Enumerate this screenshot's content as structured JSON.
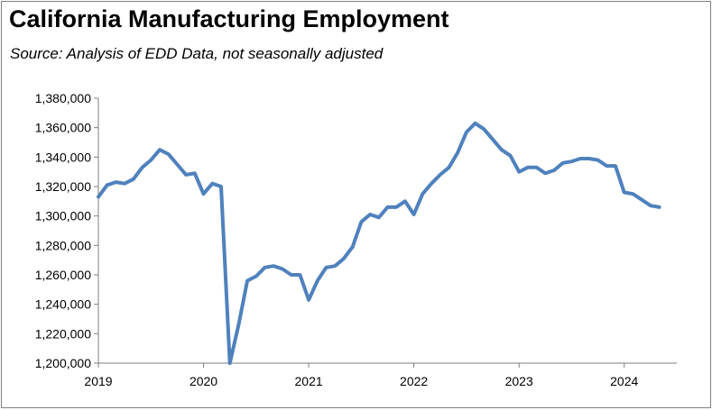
{
  "chart_data": {
    "type": "line",
    "title": "California Manufacturing Employment",
    "subtitle": "Source:  Analysis of EDD Data, not seasonally adjusted",
    "xlabel": "",
    "ylabel": "",
    "ylim": [
      1200000,
      1380000
    ],
    "yticks": [
      1200000,
      1220000,
      1240000,
      1260000,
      1280000,
      1300000,
      1320000,
      1340000,
      1360000,
      1380000
    ],
    "ytick_labels": [
      "1,200,000",
      "1,220,000",
      "1,240,000",
      "1,260,000",
      "1,280,000",
      "1,300,000",
      "1,320,000",
      "1,340,000",
      "1,360,000",
      "1,380,000"
    ],
    "xticks": [
      "2019",
      "2020",
      "2021",
      "2022",
      "2023",
      "2024"
    ],
    "grid": false,
    "legend": "none",
    "line_color": "#4f81bd",
    "series": [
      {
        "x": [
          "2019-01",
          "2019-02",
          "2019-03",
          "2019-04",
          "2019-05",
          "2019-06",
          "2019-07",
          "2019-08",
          "2019-09",
          "2019-10",
          "2019-11",
          "2019-12",
          "2020-01",
          "2020-02",
          "2020-03",
          "2020-04",
          "2020-05",
          "2020-06",
          "2020-07",
          "2020-08",
          "2020-09",
          "2020-10",
          "2020-11",
          "2020-12",
          "2021-01",
          "2021-02",
          "2021-03",
          "2021-04",
          "2021-05",
          "2021-06",
          "2021-07",
          "2021-08",
          "2021-09",
          "2021-10",
          "2021-11",
          "2021-12",
          "2022-01",
          "2022-02",
          "2022-03",
          "2022-04",
          "2022-05",
          "2022-06",
          "2022-07",
          "2022-08",
          "2022-09",
          "2022-10",
          "2022-11",
          "2022-12",
          "2023-01",
          "2023-02",
          "2023-03",
          "2023-04",
          "2023-05",
          "2023-06",
          "2023-07",
          "2023-08",
          "2023-09",
          "2023-10",
          "2023-11",
          "2023-12",
          "2024-01",
          "2024-02",
          "2024-03",
          "2024-04",
          "2024-05"
        ],
        "values": [
          1313000,
          1321000,
          1323000,
          1322000,
          1325000,
          1333000,
          1338000,
          1345000,
          1342000,
          1335000,
          1328000,
          1329000,
          1315000,
          1322000,
          1320000,
          1200000,
          1226000,
          1256000,
          1259000,
          1265000,
          1266000,
          1264000,
          1260000,
          1260000,
          1243000,
          1256000,
          1265000,
          1266000,
          1271000,
          1279000,
          1296000,
          1301000,
          1299000,
          1306000,
          1306000,
          1310000,
          1301000,
          1315000,
          1322000,
          1328000,
          1333000,
          1343000,
          1357000,
          1363000,
          1359000,
          1352000,
          1345000,
          1341000,
          1330000,
          1333000,
          1333000,
          1329000,
          1331000,
          1336000,
          1337000,
          1339000,
          1339000,
          1338000,
          1334000,
          1334000,
          1316000,
          1315000,
          1311000,
          1307000,
          1306000
        ]
      }
    ]
  }
}
